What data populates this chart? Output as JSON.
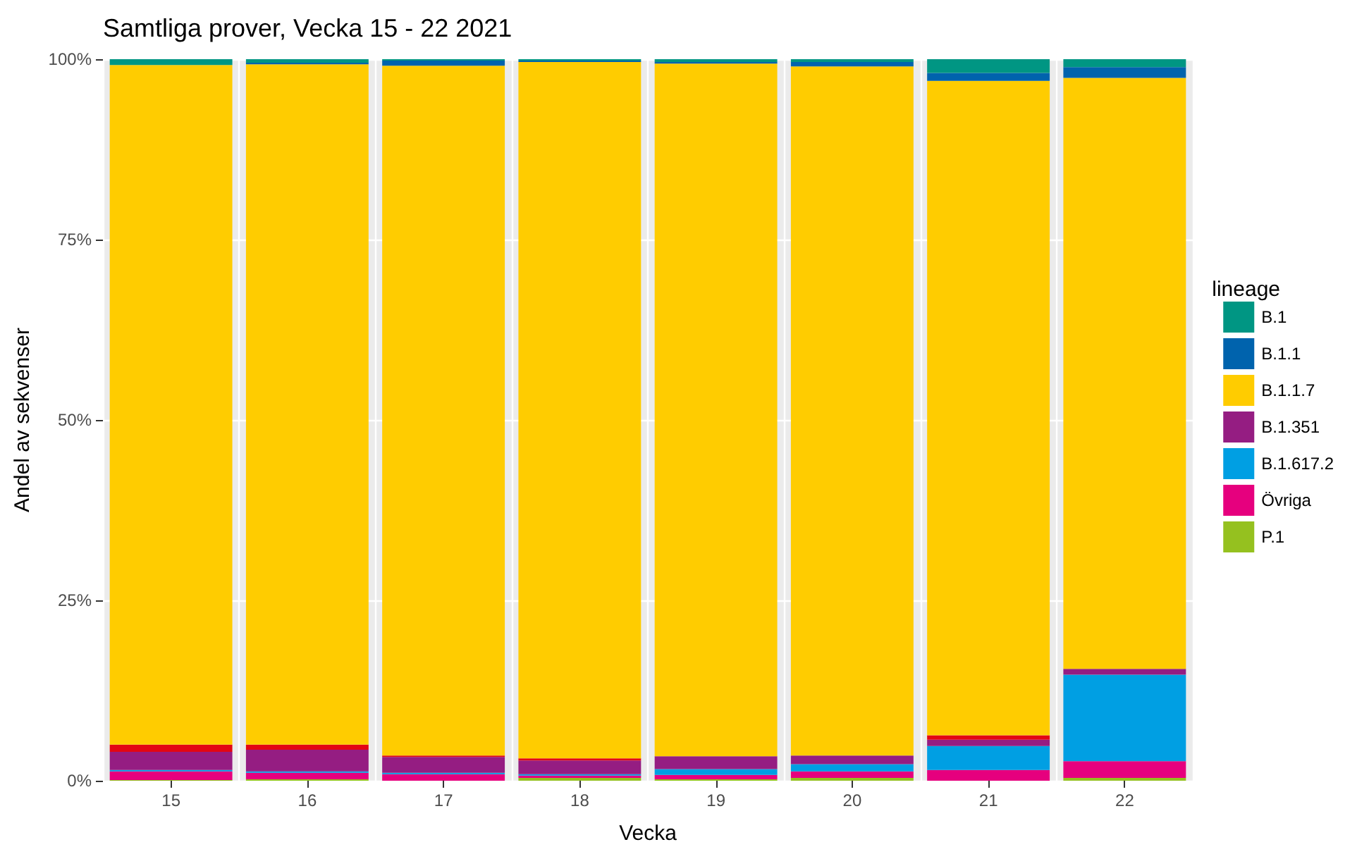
{
  "chart_data": {
    "type": "bar",
    "title": "Samtliga prover, Vecka 15 - 22 2021",
    "xlabel": "Vecka",
    "ylabel": "Andel av sekvenser",
    "legend_title": "lineage",
    "legend": "right",
    "grid": true,
    "stacked": true,
    "categories": [
      "15",
      "16",
      "17",
      "18",
      "19",
      "20",
      "21",
      "22"
    ],
    "ylim": [
      0,
      100
    ],
    "yticks": [
      {
        "value": 0,
        "label": "0%"
      },
      {
        "value": 25,
        "label": "25%"
      },
      {
        "value": 50,
        "label": "50%"
      },
      {
        "value": 75,
        "label": "75%"
      },
      {
        "value": 100,
        "label": "100%"
      }
    ],
    "series": [
      {
        "name": "P.1",
        "color": "#95c11f",
        "values": [
          0.1,
          0.2,
          0,
          0.4,
          0.2,
          0.4,
          0,
          0.4
        ]
      },
      {
        "name": "Övriga",
        "color": "#e6007e",
        "values": [
          1.2,
          0.9,
          0.9,
          0.3,
          0.6,
          0.9,
          1.5,
          2.3
        ]
      },
      {
        "name": "B.1.617.2",
        "color": "#009fe3",
        "values": [
          0.2,
          0.2,
          0.2,
          0.2,
          0.8,
          1.0,
          3.3,
          12.0
        ]
      },
      {
        "name": "B.1.351",
        "color": "#951d82",
        "values": [
          2.5,
          3.0,
          2.2,
          1.9,
          1.8,
          1.2,
          0.9,
          0.8
        ]
      },
      {
        "color": "#e30613",
        "values": [
          1.0,
          0.7,
          0.2,
          0.3,
          0,
          0,
          0.6,
          0
        ]
      },
      {
        "name": "B.1.1.7",
        "color": "#ffcc00",
        "values": [
          94.2,
          94.3,
          95.6,
          96.5,
          96.0,
          95.5,
          90.7,
          81.9
        ]
      },
      {
        "name": "B.1.1",
        "color": "#0063ad",
        "values": [
          0,
          0.2,
          0.7,
          0.2,
          0.2,
          0.6,
          1.1,
          1.5
        ]
      },
      {
        "name": "B.1",
        "color": "#009683",
        "values": [
          0.8,
          0.5,
          0.2,
          0.2,
          0.4,
          0.4,
          1.9,
          1.1
        ]
      }
    ]
  }
}
